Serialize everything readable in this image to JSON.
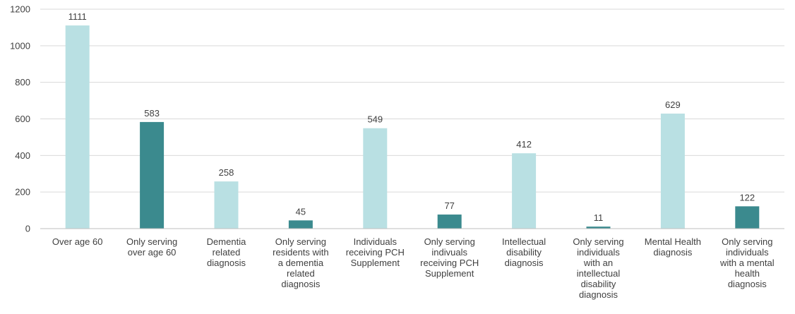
{
  "chart_data": {
    "type": "bar",
    "title": "",
    "xlabel": "",
    "ylabel": "",
    "ylim": [
      0,
      1200
    ],
    "yticks": [
      0,
      200,
      400,
      600,
      800,
      1000,
      1200
    ],
    "grid": true,
    "legend": "none",
    "colors": {
      "light": "#b9e0e3",
      "dark": "#3b8a8e"
    },
    "categories": [
      "Over age 60",
      "Only serving over age 60",
      "Dementia related diagnosis",
      "Only serving residents with a dementia related diagnosis",
      "Individuals receiving PCH Supplement",
      "Only serving indivuals receiving PCH Supplement",
      "Intellectual disability diagnosis",
      "Only serving individuals with an intellectual disability diagnosis",
      "Mental Health diagnosis",
      "Only serving individuals with a mental health diagnosis"
    ],
    "category_lines": [
      [
        "Over age 60"
      ],
      [
        "Only serving",
        "over age 60"
      ],
      [
        "Dementia",
        "related",
        "diagnosis"
      ],
      [
        "Only serving",
        "residents with",
        "a dementia",
        "related",
        "diagnosis"
      ],
      [
        "Individuals",
        "receiving PCH",
        "Supplement"
      ],
      [
        "Only serving",
        "indivuals",
        "receiving PCH",
        "Supplement"
      ],
      [
        "Intellectual",
        "disability",
        "diagnosis"
      ],
      [
        "Only serving",
        "individuals",
        "with an",
        "intellectual",
        "disability",
        "diagnosis"
      ],
      [
        "Mental Health",
        "diagnosis"
      ],
      [
        "Only serving",
        "individuals",
        "with a mental",
        "health",
        "diagnosis"
      ]
    ],
    "values": [
      1111,
      583,
      258,
      45,
      549,
      77,
      412,
      11,
      629,
      122
    ],
    "bar_color_keys": [
      "light",
      "dark",
      "light",
      "dark",
      "light",
      "dark",
      "light",
      "dark",
      "light",
      "dark"
    ]
  }
}
